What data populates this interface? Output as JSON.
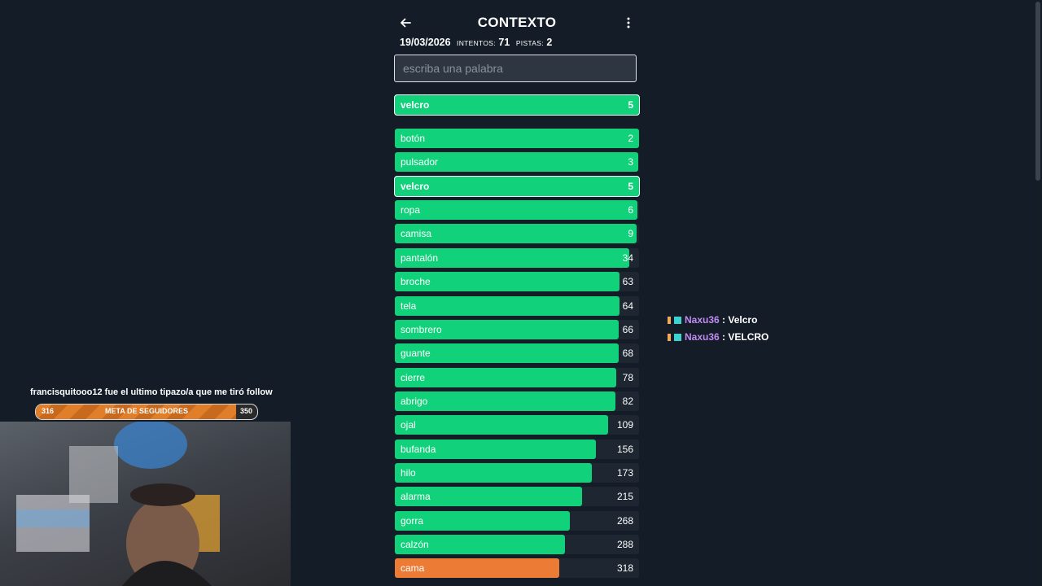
{
  "header": {
    "title": "CONTEXTO",
    "date": "19/03/2026",
    "attempts_label": "INTENTOS:",
    "attempts": "71",
    "hints_label": "PISTAS:",
    "hints": "2"
  },
  "search": {
    "placeholder": "escriba una palabra"
  },
  "current_guess": {
    "word": "velcro",
    "rank": "5"
  },
  "guesses": [
    {
      "word": "botón",
      "rank": "2",
      "fill": 1.0,
      "color": "green"
    },
    {
      "word": "pulsador",
      "rank": "3",
      "fill": 0.997,
      "color": "green"
    },
    {
      "word": "velcro",
      "rank": "5",
      "fill": 1.0,
      "color": "green",
      "selected": true
    },
    {
      "word": "ropa",
      "rank": "6",
      "fill": 0.993,
      "color": "green"
    },
    {
      "word": "camisa",
      "rank": "9",
      "fill": 0.99,
      "color": "green"
    },
    {
      "word": "pantalón",
      "rank": "34",
      "fill": 0.96,
      "color": "green"
    },
    {
      "word": "broche",
      "rank": "63",
      "fill": 0.92,
      "color": "green"
    },
    {
      "word": "tela",
      "rank": "64",
      "fill": 0.92,
      "color": "green"
    },
    {
      "word": "sombrero",
      "rank": "66",
      "fill": 0.917,
      "color": "green"
    },
    {
      "word": "guante",
      "rank": "68",
      "fill": 0.915,
      "color": "green"
    },
    {
      "word": "cierre",
      "rank": "78",
      "fill": 0.907,
      "color": "green"
    },
    {
      "word": "abrigo",
      "rank": "82",
      "fill": 0.903,
      "color": "green"
    },
    {
      "word": "ojal",
      "rank": "109",
      "fill": 0.873,
      "color": "green"
    },
    {
      "word": "bufanda",
      "rank": "156",
      "fill": 0.823,
      "color": "green"
    },
    {
      "word": "hilo",
      "rank": "173",
      "fill": 0.807,
      "color": "green"
    },
    {
      "word": "alarma",
      "rank": "215",
      "fill": 0.767,
      "color": "green"
    },
    {
      "word": "gorra",
      "rank": "268",
      "fill": 0.717,
      "color": "green"
    },
    {
      "word": "calzón",
      "rank": "288",
      "fill": 0.697,
      "color": "green"
    },
    {
      "word": "cama",
      "rank": "318",
      "fill": 0.673,
      "color": "orange"
    }
  ],
  "colors": {
    "green": "#12d17b",
    "orange": "#ec7b36"
  },
  "chat": [
    {
      "user": "Naxu36",
      "message": ": Velcro"
    },
    {
      "user": "Naxu36",
      "message": ": VELCRO"
    }
  ],
  "overlay": {
    "follow_text": "francisquitooo12 fue el ultimo tipazo/a que me tiró follow",
    "goal_label": "META DE SEGUIDORES",
    "goal_current": "316",
    "goal_target": "350",
    "goal_progress": 0.903
  }
}
